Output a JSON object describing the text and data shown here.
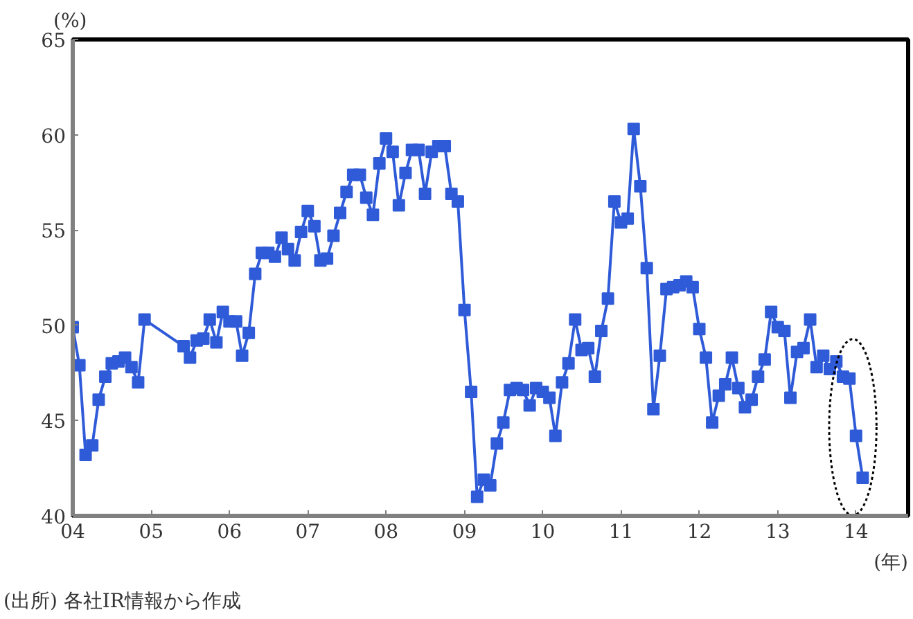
{
  "chart_data": {
    "type": "line",
    "ylabel": "(%)",
    "xlabel": "(年)",
    "annotations": [
      "(出所) 各社IR情報から作成"
    ],
    "x": [
      "2004-01",
      "2004-02",
      "2004-03",
      "2004-04",
      "2004-05",
      "2004-06",
      "2004-07",
      "2004-08",
      "2004-09",
      "2004-10",
      "2004-11",
      "2004-12",
      "2005-06",
      "2005-07",
      "2005-08",
      "2005-09",
      "2005-10",
      "2005-11",
      "2005-12",
      "2006-01",
      "2006-02",
      "2006-03",
      "2006-04",
      "2006-05",
      "2006-06",
      "2006-07",
      "2006-08",
      "2006-09",
      "2006-10",
      "2006-11",
      "2006-12",
      "2007-01",
      "2007-02",
      "2007-03",
      "2007-04",
      "2007-05",
      "2007-06",
      "2007-07",
      "2007-08",
      "2007-09",
      "2007-10",
      "2007-11",
      "2007-12",
      "2008-01",
      "2008-02",
      "2008-03",
      "2008-04",
      "2008-05",
      "2008-06",
      "2008-07",
      "2008-08",
      "2008-09",
      "2008-10",
      "2008-11",
      "2008-12",
      "2009-01",
      "2009-02",
      "2009-03",
      "2009-04",
      "2009-05",
      "2009-06",
      "2009-07",
      "2009-08",
      "2009-09",
      "2009-10",
      "2009-11",
      "2009-12",
      "2010-01",
      "2010-02",
      "2010-03",
      "2010-04",
      "2010-05",
      "2010-06",
      "2010-07",
      "2010-08",
      "2010-09",
      "2010-10",
      "2010-11",
      "2010-12",
      "2011-01",
      "2011-02",
      "2011-03",
      "2011-04",
      "2011-05",
      "2011-06",
      "2011-07",
      "2011-08",
      "2011-09",
      "2011-10",
      "2011-11",
      "2011-12",
      "2012-01",
      "2012-02",
      "2012-03",
      "2012-04",
      "2012-05",
      "2012-06",
      "2012-07",
      "2012-08",
      "2012-09",
      "2012-10",
      "2012-11",
      "2012-12",
      "2013-01",
      "2013-02",
      "2013-03",
      "2013-04",
      "2013-05",
      "2013-06",
      "2013-07",
      "2013-08",
      "2013-09",
      "2013-10",
      "2013-11",
      "2013-12",
      "2014-01",
      "2014-02"
    ],
    "series": [
      {
        "color": "#2f5bd8",
        "values": [
          49.9,
          47.9,
          43.2,
          43.7,
          46.1,
          47.3,
          48.0,
          48.1,
          48.3,
          47.8,
          47.0,
          50.3,
          48.9,
          48.3,
          49.2,
          49.3,
          50.3,
          49.1,
          50.7,
          50.2,
          50.2,
          48.4,
          49.6,
          52.7,
          53.8,
          53.8,
          53.6,
          54.6,
          54.0,
          53.4,
          54.9,
          56.0,
          55.2,
          53.4,
          53.5,
          54.7,
          55.9,
          57.0,
          57.9,
          57.9,
          56.7,
          55.8,
          58.5,
          59.8,
          59.1,
          56.3,
          58.0,
          59.2,
          59.2,
          56.9,
          59.1,
          59.4,
          59.4,
          56.9,
          56.5,
          50.8,
          46.5,
          41.0,
          41.9,
          41.6,
          43.8,
          44.9,
          46.6,
          46.7,
          46.6,
          45.8,
          46.7,
          46.5,
          46.2,
          44.2,
          47.0,
          48.0,
          50.3,
          48.7,
          48.8,
          47.3,
          49.7,
          51.4,
          56.5,
          55.4,
          55.6,
          60.3,
          57.3,
          53.0,
          45.6,
          48.4,
          51.9,
          52.0,
          52.1,
          52.3,
          52.0,
          49.8,
          48.3,
          44.9,
          46.3,
          46.9,
          48.3,
          46.7,
          45.7,
          46.1,
          47.3,
          48.2,
          50.7,
          49.9,
          49.7,
          46.2,
          48.6,
          48.8,
          50.3,
          47.8,
          48.4,
          47.7,
          48.1,
          47.3,
          47.2,
          44.2,
          42.0
        ]
      }
    ],
    "marker": "square",
    "line_style": "solid",
    "grid": false,
    "xlim": [
      "2004-01",
      "2014-09"
    ],
    "xticks": [
      {
        "value": "2004-01",
        "label": "04"
      },
      {
        "value": "2005-01",
        "label": "05"
      },
      {
        "value": "2006-01",
        "label": "06"
      },
      {
        "value": "2007-01",
        "label": "07"
      },
      {
        "value": "2008-01",
        "label": "08"
      },
      {
        "value": "2009-01",
        "label": "09"
      },
      {
        "value": "2010-01",
        "label": "10"
      },
      {
        "value": "2011-01",
        "label": "11"
      },
      {
        "value": "2012-01",
        "label": "12"
      },
      {
        "value": "2013-01",
        "label": "13"
      },
      {
        "value": "2014-01",
        "label": "14"
      }
    ],
    "ylim": [
      40,
      65
    ],
    "yticks": [
      40,
      45,
      50,
      55,
      60,
      65
    ]
  }
}
